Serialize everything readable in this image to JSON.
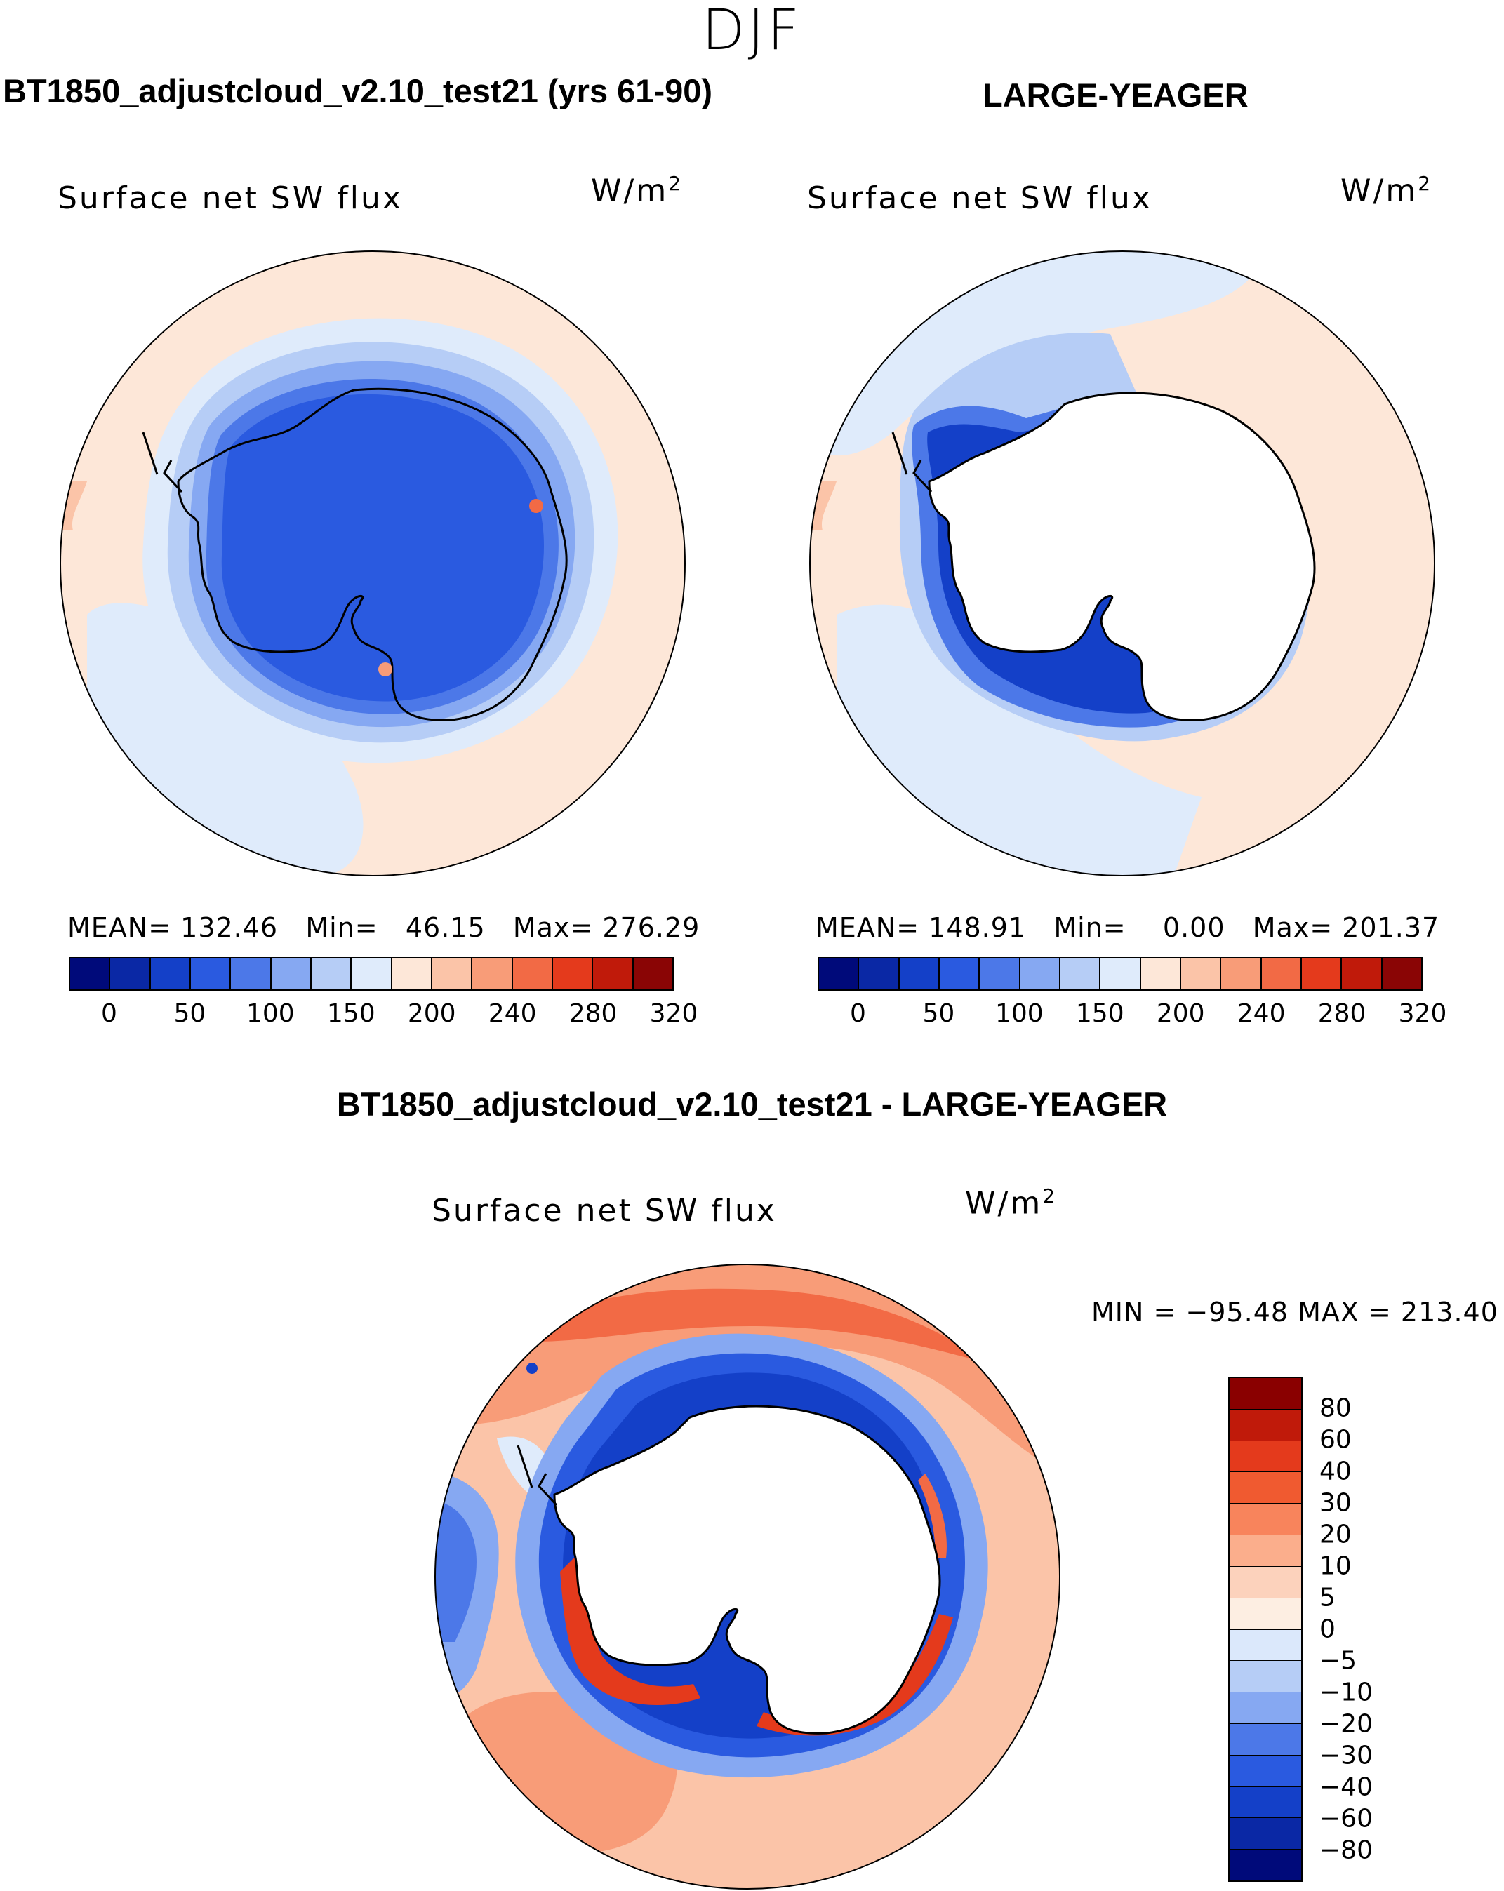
{
  "figure": {
    "season": "DJF"
  },
  "panel_top_left": {
    "title": "BT1850_adjustcloud_v2.10_test21 (yrs 61-90)",
    "variable": "Surface net SW flux",
    "units": "W/m",
    "units_sup": "2",
    "stats": "MEAN= 132.46   Min=   46.15   Max= 276.29"
  },
  "panel_top_right": {
    "title": "LARGE-YEAGER",
    "variable": "Surface net SW flux",
    "units": "W/m",
    "units_sup": "2",
    "stats": "MEAN= 148.91   Min=    0.00   Max= 201.37"
  },
  "panel_bottom": {
    "title": "BT1850_adjustcloud_v2.10_test21 - LARGE-YEAGER",
    "variable": "Surface net SW flux",
    "units": "W/m",
    "units_sup": "2",
    "minmax": "MIN = −95.48 MAX = 213.40"
  },
  "chart_data": [
    {
      "type": "heatmap",
      "title": "BT1850_adjustcloud_v2.10_test21 (yrs 61-90)",
      "variable": "Surface net SW flux",
      "units": "W/m2",
      "colorbar_ticks": [
        "0",
        "50",
        "100",
        "150",
        "200",
        "240",
        "280",
        "320"
      ],
      "colors": [
        "#000a7a",
        "#0a28a5",
        "#1440c8",
        "#2a5ae0",
        "#4c78e8",
        "#86a8f2",
        "#b6cdf6",
        "#dfebfb",
        "#fde7d8",
        "#fbc4a8",
        "#f89c78",
        "#f26a45",
        "#e43a1c",
        "#c01a0a",
        "#8a0505"
      ],
      "mean": 132.46,
      "min": 46.15,
      "max": 276.29
    },
    {
      "type": "heatmap",
      "title": "LARGE-YEAGER",
      "variable": "Surface net SW flux",
      "units": "W/m2",
      "colorbar_ticks": [
        "0",
        "50",
        "100",
        "150",
        "200",
        "240",
        "280",
        "320"
      ],
      "colors": [
        "#000a7a",
        "#0a28a5",
        "#1440c8",
        "#2a5ae0",
        "#4c78e8",
        "#86a8f2",
        "#b6cdf6",
        "#dfebfb",
        "#fde7d8",
        "#fbc4a8",
        "#f89c78",
        "#f26a45",
        "#e43a1c",
        "#c01a0a",
        "#8a0505"
      ],
      "mean": 148.91,
      "min": 0.0,
      "max": 201.37
    },
    {
      "type": "heatmap",
      "title": "BT1850_adjustcloud_v2.10_test21 - LARGE-YEAGER",
      "variable": "Surface net SW flux",
      "units": "W/m2",
      "colorbar_ticks": [
        "80",
        "60",
        "40",
        "30",
        "20",
        "10",
        "5",
        "0",
        "−5",
        "−10",
        "−20",
        "−30",
        "−40",
        "−60",
        "−80"
      ],
      "colors": [
        "#8a0000",
        "#c01a0a",
        "#e43a1c",
        "#f05a30",
        "#f8845c",
        "#fbae8c",
        "#fcd2bc",
        "#fdeee2",
        "#dbe8fb",
        "#b6cdf6",
        "#86a8f2",
        "#4c78e8",
        "#2a5ae0",
        "#1440c8",
        "#0a28a5",
        "#000a7a"
      ],
      "min": -95.48,
      "max": 213.4
    }
  ]
}
